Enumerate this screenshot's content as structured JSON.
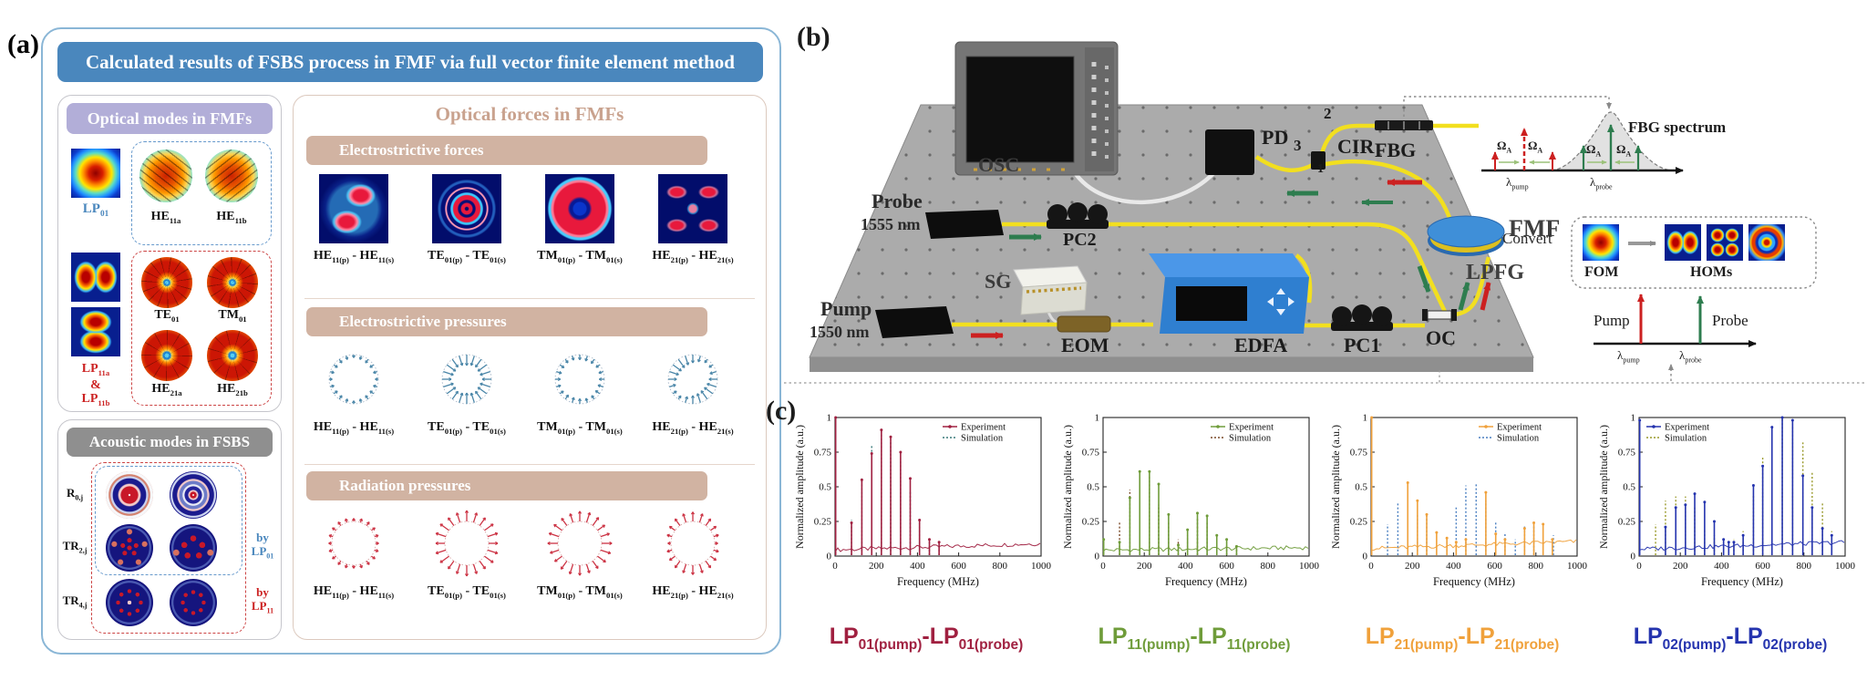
{
  "colors": {
    "panel_border": "#8ab6d6",
    "title_bg": "#4a87bd",
    "optical_modes_header_bg": "#b2aed8",
    "acoustic_header_bg": "#8f8f8f",
    "forces_bar_bg": "#d1b3a2",
    "forces_title_text": "#c9a28e",
    "electro_pressure_arrows": "#4a86a8",
    "radiation_pressure_arrows": "#cc3344",
    "fiber_yellow": "#f2df1f"
  },
  "panel_a": {
    "label": "(a)",
    "title": "Calculated results of FSBS process in FMF via full vector finite element method",
    "optical_modes": {
      "header": "Optical modes in FMFs",
      "lp01": "LP_{01}",
      "he11a": "HE_{11a}",
      "he11b": "HE_{11b}",
      "lp11a": "LP_{11a}",
      "amp": "&",
      "lp11b": "LP_{11b}",
      "te01": "TE_{01}",
      "tm01": "TM_{01}",
      "he21a": "HE_{21a}",
      "he21b": "HE_{21b}"
    },
    "acoustic_modes": {
      "header": "Acoustic modes in FSBS",
      "row1": "R_{0,j}",
      "row2": "TR_{2,j}",
      "row3": "TR_{4,j}",
      "by1": "by LP_{01}",
      "by2": "by LP_{11}"
    },
    "optical_forces": {
      "header": "Optical forces in FMFs",
      "sections": [
        "Electrostrictive forces",
        "Electrostrictive pressures",
        "Radiation pressures"
      ],
      "pair_labels": [
        "HE_{11(p)} - HE_{11(s)}",
        "TE_{01(p)} - TE_{01(s)}",
        "TM_{01(p)} - TM_{01(s)}",
        "HE_{21(p)} - HE_{21(s)}"
      ]
    }
  },
  "panel_b": {
    "label": "(b)",
    "devices": {
      "osc": "OSC",
      "pd": "PD",
      "cir": "CIR",
      "port1": "1",
      "port2": "2",
      "port3": "3",
      "fbg": "FBG",
      "fmf": "FMF",
      "probe_name": "Probe",
      "probe_wl": "1555 nm",
      "pc2": "PC2",
      "sg": "SG",
      "pump_name": "Pump",
      "pump_wl": "1550 nm",
      "eom": "EOM",
      "edfa": "EDFA",
      "pc1": "PC1",
      "oc": "OC",
      "lpfg": "LPFG"
    },
    "fbg_inset": {
      "title": "FBG spectrum",
      "omega1": "Ω_{A}",
      "omega2": "Ω_{A}",
      "omega3": "Ω_{A}",
      "omega4": "Ω_{A}",
      "lambda_pump": "λ_{pump}",
      "lambda_probe": "λ_{probe}"
    },
    "convert_inset": {
      "label": "Convert",
      "fom": "FOM",
      "homs": "HOMs"
    },
    "spectrum_inset": {
      "pump": "Pump",
      "probe": "Probe",
      "lambda_pump": "λ_{pump}",
      "lambda_probe": "λ_{probe}"
    }
  },
  "panel_c": {
    "label": "(c)"
  },
  "chart_data": [
    {
      "type": "line",
      "title": "LP_{01(pump)}-LP_{01(probe)}",
      "xlabel": "Frequency (MHz)",
      "ylabel": "Normalized amplitude (a.u.)",
      "xlim": [
        0,
        1000
      ],
      "ylim": [
        0,
        1
      ],
      "xticks": [
        0,
        200,
        400,
        600,
        800,
        1000
      ],
      "yticks": [
        0,
        0.25,
        0.5,
        0.75,
        1
      ],
      "legend": [
        "Experiment",
        "Simulation"
      ],
      "legend_pos": "top-right",
      "exp_color": "#a02040",
      "sim_color": "#3a7a7a",
      "caption_color": "#a02040",
      "series": [
        {
          "name": "Experiment",
          "peaks": [
            [
              3,
              1.0
            ],
            [
              80,
              0.24
            ],
            [
              130,
              0.55
            ],
            [
              178,
              0.74
            ],
            [
              225,
              0.91
            ],
            [
              270,
              0.86
            ],
            [
              318,
              0.75
            ],
            [
              365,
              0.56
            ],
            [
              410,
              0.26
            ],
            [
              458,
              0.12
            ],
            [
              505,
              0.1
            ]
          ]
        },
        {
          "name": "Simulation",
          "peaks": [
            [
              80,
              0.26
            ],
            [
              130,
              0.56
            ],
            [
              178,
              0.8
            ],
            [
              225,
              0.9
            ],
            [
              270,
              0.84
            ],
            [
              318,
              0.7
            ],
            [
              365,
              0.47
            ],
            [
              410,
              0.25
            ],
            [
              458,
              0.1
            ],
            [
              505,
              0.08
            ]
          ]
        }
      ],
      "noise": {
        "base": 0.03,
        "rise": 0.045
      }
    },
    {
      "type": "line",
      "title": "LP_{11(pump)}-LP_{11(probe)}",
      "xlabel": "Frequency (MHz)",
      "ylabel": "Normalized amplitude (a.u.)",
      "xlim": [
        0,
        1000
      ],
      "ylim": [
        0,
        1
      ],
      "xticks": [
        0,
        200,
        400,
        600,
        800,
        1000
      ],
      "yticks": [
        0,
        0.25,
        0.5,
        0.75,
        1
      ],
      "legend": [
        "Experiment",
        "Simulation"
      ],
      "legend_pos": "top-right",
      "exp_color": "#6f9c3a",
      "sim_color": "#7a4a28",
      "caption_color": "#6f9c3a",
      "series": [
        {
          "name": "Experiment",
          "peaks": [
            [
              3,
              0.12
            ],
            [
              80,
              0.1
            ],
            [
              130,
              0.42
            ],
            [
              178,
              0.61
            ],
            [
              225,
              0.61
            ],
            [
              270,
              0.52
            ],
            [
              318,
              0.3
            ],
            [
              365,
              0.08
            ],
            [
              410,
              0.19
            ],
            [
              458,
              0.31
            ],
            [
              505,
              0.29
            ],
            [
              552,
              0.15
            ],
            [
              600,
              0.12
            ],
            [
              648,
              0.07
            ]
          ]
        },
        {
          "name": "Simulation",
          "peaks": [
            [
              80,
              0.25
            ],
            [
              130,
              0.48
            ],
            [
              178,
              0.61
            ],
            [
              225,
              0.57
            ],
            [
              270,
              0.37
            ],
            [
              318,
              0.25
            ],
            [
              365,
              0.12
            ],
            [
              410,
              0.15
            ],
            [
              458,
              0.27
            ],
            [
              505,
              0.24
            ],
            [
              552,
              0.12
            ],
            [
              600,
              0.09
            ],
            [
              648,
              0.05
            ]
          ]
        }
      ],
      "noise": {
        "base": 0.028,
        "rise": 0.018
      }
    },
    {
      "type": "line",
      "title": "LP_{21(pump)}-LP_{21(probe)}",
      "xlabel": "Frequency (MHz)",
      "ylabel": "Normalized amplitude (a.u.)",
      "xlim": [
        0,
        1000
      ],
      "ylim": [
        0,
        1
      ],
      "xticks": [
        0,
        200,
        400,
        600,
        800,
        1000
      ],
      "yticks": [
        0,
        0.25,
        0.5,
        0.75,
        1
      ],
      "legend": [
        "Experiment",
        "Simulation"
      ],
      "legend_pos": "top-right",
      "exp_color": "#f0a13b",
      "sim_color": "#4a7fc1",
      "caption_color": "#f0a13b",
      "series": [
        {
          "name": "Experiment",
          "peaks": [
            [
              3,
              1.0
            ],
            [
              178,
              0.53
            ],
            [
              225,
              0.4
            ],
            [
              270,
              0.3
            ],
            [
              318,
              0.17
            ],
            [
              368,
              0.13
            ],
            [
              413,
              0.1
            ],
            [
              460,
              0.12
            ],
            [
              557,
              0.46
            ],
            [
              605,
              0.16
            ],
            [
              650,
              0.12
            ],
            [
              745,
              0.2
            ],
            [
              790,
              0.24
            ],
            [
              835,
              0.23
            ],
            [
              880,
              0.12
            ]
          ]
        },
        {
          "name": "Simulation",
          "peaks": [
            [
              80,
              0.23
            ],
            [
              130,
              0.38
            ],
            [
              178,
              0.37
            ],
            [
              225,
              0.3
            ],
            [
              270,
              0.29
            ],
            [
              368,
              0.12
            ],
            [
              413,
              0.35
            ],
            [
              460,
              0.51
            ],
            [
              510,
              0.53
            ],
            [
              557,
              0.4
            ],
            [
              605,
              0.25
            ],
            [
              650,
              0.17
            ],
            [
              700,
              0.12
            ],
            [
              745,
              0.22
            ],
            [
              790,
              0.22
            ],
            [
              835,
              0.21
            ],
            [
              885,
              0.15
            ]
          ]
        }
      ],
      "noise": {
        "base": 0.04,
        "rise": 0.05
      }
    },
    {
      "type": "line",
      "title": "LP_{02(pump)}-LP_{02(probe)}",
      "xlabel": "Frequency (MHz)",
      "ylabel": "Normalized amplitude (a.u.)",
      "xlim": [
        0,
        1000
      ],
      "ylim": [
        0,
        1
      ],
      "xticks": [
        0,
        200,
        400,
        600,
        800,
        1000
      ],
      "yticks": [
        0,
        0.25,
        0.5,
        0.75,
        1
      ],
      "legend": [
        "Experiment",
        "Simulation"
      ],
      "legend_pos": "top-left",
      "exp_color": "#2433ae",
      "sim_color": "#99992a",
      "caption_color": "#2433ae",
      "series": [
        {
          "name": "Experiment",
          "peaks": [
            [
              3,
              0.98
            ],
            [
              128,
              0.21
            ],
            [
              178,
              0.35
            ],
            [
              225,
              0.37
            ],
            [
              270,
              0.45
            ],
            [
              318,
              0.39
            ],
            [
              365,
              0.25
            ],
            [
              410,
              0.12
            ],
            [
              435,
              0.1
            ],
            [
              460,
              0.1
            ],
            [
              505,
              0.15
            ],
            [
              555,
              0.51
            ],
            [
              600,
              0.65
            ],
            [
              645,
              0.93
            ],
            [
              695,
              1.0
            ],
            [
              745,
              0.98
            ],
            [
              795,
              0.58
            ],
            [
              840,
              0.35
            ],
            [
              890,
              0.2
            ],
            [
              935,
              0.15
            ]
          ]
        },
        {
          "name": "Simulation",
          "peaks": [
            [
              80,
              0.23
            ],
            [
              128,
              0.4
            ],
            [
              178,
              0.43
            ],
            [
              225,
              0.43
            ],
            [
              270,
              0.35
            ],
            [
              318,
              0.2
            ],
            [
              365,
              0.15
            ],
            [
              460,
              0.12
            ],
            [
              505,
              0.18
            ],
            [
              555,
              0.45
            ],
            [
              600,
              0.71
            ],
            [
              645,
              0.85
            ],
            [
              695,
              0.99
            ],
            [
              745,
              0.95
            ],
            [
              795,
              0.82
            ],
            [
              840,
              0.6
            ],
            [
              890,
              0.38
            ],
            [
              935,
              0.18
            ]
          ]
        }
      ],
      "noise": {
        "base": 0.035,
        "rise": 0.05
      }
    }
  ]
}
